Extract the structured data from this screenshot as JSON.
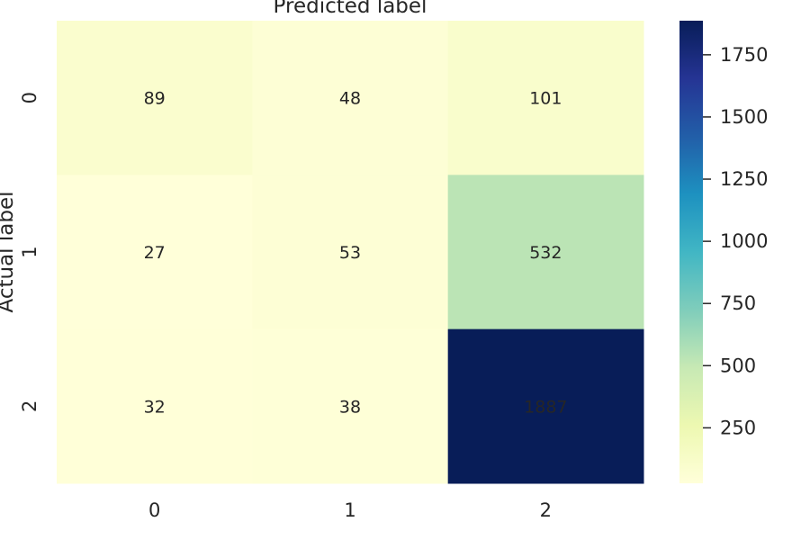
{
  "chart_data": {
    "type": "heatmap",
    "xlabel": "Predicted label",
    "ylabel": "Actual label",
    "x_categories": [
      "0",
      "1",
      "2"
    ],
    "y_categories": [
      "0",
      "1",
      "2"
    ],
    "matrix": [
      [
        89,
        48,
        101
      ],
      [
        27,
        53,
        532
      ],
      [
        32,
        38,
        1887
      ]
    ],
    "colormap": "YlGnBu",
    "colorbar": {
      "min": 27,
      "max": 1887,
      "ticks": [
        250,
        500,
        750,
        1000,
        1250,
        1500,
        1750
      ],
      "tick_labels": [
        "250",
        "500",
        "750",
        "1000",
        "1250",
        "1500",
        "1750"
      ]
    },
    "grid": false
  }
}
